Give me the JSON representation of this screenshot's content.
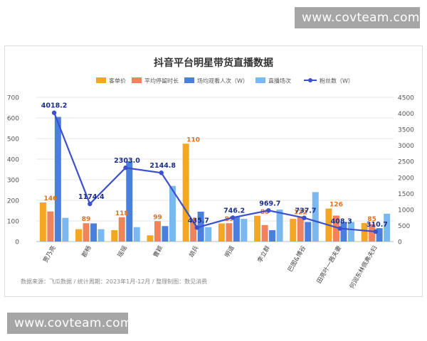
{
  "watermarks": {
    "top": "www.covteam.com",
    "bottom": "www.covteam.com"
  },
  "colors": {
    "bar_price": "#f5a623",
    "bar_stay": "#f0835a",
    "bar_viewers": "#4a7fe0",
    "bar_sessions": "#7ab8f0",
    "line_fans": "#3b4fcf",
    "label_orange": "#e0701f",
    "label_blue": "#1a2f8c"
  },
  "chart_data": {
    "type": "bar",
    "title": "抖音平台明星带货直播数据",
    "categories": [
      "贾乃亮",
      "郡畅",
      "瑶瑶",
      "曹颖",
      "胡兵",
      "明道",
      "李立群",
      "巴图&博谷",
      "田亮叶一茜夫妻",
      "何润东林佩弗夫妇"
    ],
    "series": [
      {
        "name": "客单价",
        "axis": "left",
        "values": [
          190,
          60,
          55,
          30,
          475,
          88,
          125,
          110,
          160,
          90
        ],
        "labels": [
          null,
          null,
          null,
          null,
          null,
          null,
          null,
          null,
          null,
          null
        ]
      },
      {
        "name": "平均停留时长",
        "axis": "left",
        "values": [
          146,
          89,
          118,
          99,
          110,
          89,
          80,
          122,
          126,
          85
        ],
        "labels": [
          "146",
          "89",
          "118",
          "99",
          "110",
          "89",
          "80",
          "122",
          "126",
          "85"
        ]
      },
      {
        "name": "场均观看人次（W）",
        "axis": "left",
        "values": [
          605,
          88,
          390,
          75,
          145,
          120,
          55,
          95,
          95,
          65
        ],
        "labels": [
          null,
          null,
          null,
          null,
          null,
          null,
          null,
          null,
          null,
          null
        ]
      },
      {
        "name": "直播场次",
        "axis": "left",
        "values": [
          115,
          60,
          70,
          270,
          70,
          110,
          155,
          240,
          95,
          135
        ],
        "labels": [
          null,
          null,
          null,
          null,
          null,
          null,
          null,
          null,
          null,
          null
        ]
      },
      {
        "name": "粉丝数（W）",
        "type": "line",
        "axis": "right",
        "values": [
          4018.2,
          1174.4,
          2303.0,
          2144.8,
          435.7,
          746.2,
          969.7,
          737.7,
          408.3,
          310.7
        ],
        "labels": [
          "4018.2",
          "1174.4",
          "2303.0",
          "2144.8",
          "435.7",
          "746.2",
          "969.7",
          "737.7",
          "408.3",
          "310.7"
        ]
      }
    ],
    "y_left": {
      "ylim": [
        0,
        700
      ],
      "ticks": [
        "0",
        "100",
        "200",
        "300",
        "400",
        "500",
        "600",
        "700"
      ]
    },
    "y_right": {
      "ylim": [
        0,
        4500
      ],
      "ticks": [
        "0",
        "500",
        "1000",
        "1500",
        "2000",
        "2500",
        "3000",
        "3500",
        "4000",
        "4500"
      ]
    },
    "legend_position": "top",
    "grid": true,
    "source": "数据来源：飞瓜数据 / 统计周期：2023年1月-12月 / 整理制图：数见消费"
  }
}
